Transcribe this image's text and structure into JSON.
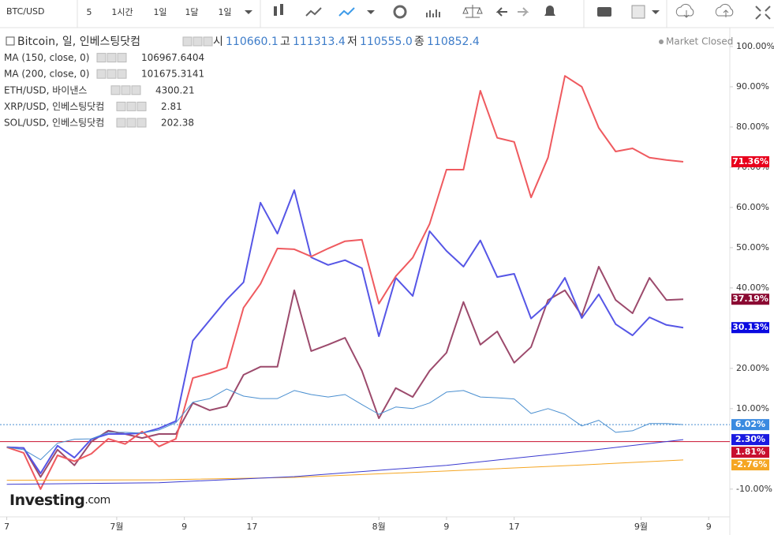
{
  "toolbar": {
    "symbol": "BTC/USD",
    "intervals": [
      "5",
      "1시간",
      "1일",
      "1달",
      "1일"
    ],
    "active_interval": 2
  },
  "header": {
    "ohlc": [
      [
        "시",
        "110660.1"
      ],
      [
        "고",
        "111313.4"
      ],
      [
        "저",
        "110555.0"
      ],
      [
        "종",
        "110852.4"
      ]
    ],
    "status": "Market Closed"
  },
  "logo": {
    "brand": "Investing",
    "suffix": ".com"
  },
  "chart_data": {
    "type": "line",
    "xlim": [
      -13.8,
      72.5
    ],
    "ylim": [
      -16.9,
      104.7
    ],
    "xticks": [
      {
        "value": -13,
        "label": "7"
      },
      {
        "value": 0,
        "label": "7월"
      },
      {
        "value": 8,
        "label": "9"
      },
      {
        "value": 16,
        "label": "17"
      },
      {
        "value": 31,
        "label": "8월"
      },
      {
        "value": 39,
        "label": "9"
      },
      {
        "value": 47,
        "label": "17"
      },
      {
        "value": 62,
        "label": "9월"
      },
      {
        "value": 70,
        "label": "9"
      }
    ],
    "yticks": [
      {
        "value": -10,
        "label": "-10.00%"
      },
      {
        "value": 10,
        "label": "10.00%"
      },
      {
        "value": 20,
        "label": "20.00%"
      },
      {
        "value": 30,
        "label": "30.00%"
      },
      {
        "value": 40,
        "label": "40.00%"
      },
      {
        "value": 50,
        "label": "50.00%"
      },
      {
        "value": 60,
        "label": "60.00%"
      },
      {
        "value": 70,
        "label": "70.00%"
      },
      {
        "value": 80,
        "label": "80.00%"
      },
      {
        "value": 90,
        "label": "90.00%"
      },
      {
        "value": 100,
        "label": "100.00%"
      }
    ],
    "x": [
      -13,
      -11,
      -9,
      -7,
      -5,
      -3,
      -1,
      1,
      3,
      5,
      7,
      9,
      11,
      13,
      15,
      17,
      19,
      21,
      23,
      25,
      27,
      29,
      31,
      33,
      35,
      37,
      39,
      41,
      43,
      45,
      47,
      49,
      51,
      53,
      55,
      57,
      59,
      61,
      63,
      65,
      67
    ],
    "price_line": {
      "value": 1.81,
      "label": "1.81%",
      "color": "#c8102e"
    },
    "series": [
      {
        "name": "Bitcoin, 일, 인베스팅닷컴",
        "color": "#4a8fd0",
        "label_color": "#3a8ae0",
        "width": 1,
        "dotted_last": true,
        "last_label": "6.02%",
        "values": [
          0.4,
          -0.2,
          -2.7,
          1.4,
          2.4,
          2.5,
          4.1,
          4.1,
          3.9,
          4.7,
          6.5,
          11.6,
          12.5,
          14.9,
          13.1,
          12.5,
          12.5,
          14.5,
          13.5,
          12.9,
          13.5,
          11,
          8.6,
          10.4,
          10,
          11.4,
          14.1,
          14.5,
          12.9,
          12.7,
          12.4,
          8.8,
          10,
          8.6,
          5.7,
          7.1,
          4.1,
          4.5,
          6.3,
          6.3,
          6.02
        ]
      },
      {
        "name": "MA (150, close, 0)",
        "price": "106967.6404",
        "color": "#3a3ad0",
        "label_color": "#1a1ae0",
        "width": 1,
        "last_label": "2.30%",
        "x": [
          -13,
          5,
          21,
          39,
          55,
          67
        ],
        "values": [
          -8.8,
          -8.4,
          -6.9,
          -4.1,
          -0.6,
          2.3
        ]
      },
      {
        "name": "MA (200, close, 0)",
        "price": "101675.3141",
        "color": "#f5a623",
        "label_color": "#f5a623",
        "width": 1,
        "last_label": "-2.76%",
        "x": [
          -13,
          5,
          21,
          39,
          55,
          67
        ],
        "values": [
          -7.8,
          -7.7,
          -7.1,
          -5.5,
          -4,
          -2.76
        ]
      },
      {
        "name": "ETH/USD, 바이낸스",
        "price": "4300.21",
        "color": "#ef5a5f",
        "label_color": "#e8001c",
        "width": 2,
        "last_label": "71.36%",
        "values": [
          0.4,
          -1,
          -10,
          -1.6,
          -3.1,
          -1.2,
          2.5,
          1.2,
          4.3,
          0.6,
          2.5,
          17.6,
          18.8,
          20.2,
          35.1,
          41,
          49.8,
          49.6,
          47.8,
          49.8,
          51.6,
          52,
          36.1,
          42.9,
          47.5,
          55.9,
          69.4,
          69.4,
          89,
          77.3,
          76.3,
          62.5,
          72.4,
          92.7,
          90,
          79.8,
          73.9,
          74.7,
          72.4,
          71.8,
          71.36
        ]
      },
      {
        "name": "XRP/USD, 인베스팅닷컴",
        "price": "2.81",
        "color": "#5656e6",
        "label_color": "#0a0ae0",
        "width": 2,
        "last_label": "30.13%",
        "values": [
          0.4,
          0.2,
          -6.1,
          0.8,
          -2.2,
          2.4,
          3.7,
          3.7,
          3.9,
          5.1,
          6.9,
          26.9,
          32,
          37.1,
          41.4,
          61.2,
          53.5,
          64.3,
          47.6,
          45.7,
          46.9,
          44.9,
          28,
          42.5,
          38,
          54.1,
          49.2,
          45.3,
          51.8,
          42.7,
          43.5,
          32.4,
          36.1,
          42.5,
          32.5,
          38.4,
          31,
          28.2,
          32.7,
          30.8,
          30.13
        ]
      },
      {
        "name": "SOL/USD, 인베스팅닷컴",
        "price": "202.38",
        "color": "#9c4a6c",
        "label_color": "#8b0a32",
        "width": 2,
        "last_label": "37.19%",
        "values": [
          0.4,
          0.2,
          -7,
          -0.2,
          -4.1,
          1.8,
          4.5,
          3.7,
          2.7,
          3.7,
          3.7,
          11.4,
          9.6,
          10.6,
          18.4,
          20.4,
          20.4,
          39.4,
          24.3,
          25.9,
          27.6,
          19.4,
          7.6,
          15.1,
          12.9,
          19.4,
          23.9,
          36.5,
          25.9,
          29.2,
          21.4,
          25.3,
          37,
          39.4,
          33.1,
          45.3,
          37,
          33.7,
          42.5,
          37,
          37.19
        ]
      }
    ]
  }
}
